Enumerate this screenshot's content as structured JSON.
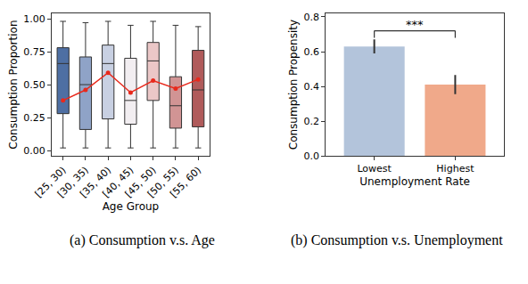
{
  "chart_data": [
    {
      "type": "box",
      "caption": "(a) Consumption v.s. Age",
      "x_label": "Age Group",
      "y_label": "Consumption Proportion",
      "categories": [
        "[25, 30)",
        "[30, 35)",
        "[35, 40)",
        "[40, 45)",
        "[45, 50)",
        "[50, 55)",
        "[55, 60)"
      ],
      "colors": [
        "#4e6fa3",
        "#8fa3c7",
        "#c8d0e2",
        "#f2eef1",
        "#ebc7c7",
        "#d19494",
        "#b05b5b"
      ],
      "lower_whisker": [
        0.02,
        0.02,
        0.02,
        0.02,
        0.02,
        0.02,
        0.02
      ],
      "q1": [
        0.28,
        0.16,
        0.24,
        0.2,
        0.38,
        0.17,
        0.18
      ],
      "median": [
        0.66,
        0.5,
        0.66,
        0.38,
        0.68,
        0.34,
        0.46
      ],
      "q3": [
        0.78,
        0.71,
        0.8,
        0.7,
        0.82,
        0.56,
        0.76
      ],
      "upper_whisker": [
        0.98,
        0.97,
        0.98,
        0.95,
        0.98,
        0.95,
        0.94
      ],
      "mean": {
        "values": [
          0.38,
          0.46,
          0.59,
          0.44,
          0.53,
          0.47,
          0.54
        ],
        "color": "#e8291c",
        "marker": "circle"
      },
      "ylim": [
        -0.04,
        1.04
      ],
      "yticks": [
        {
          "value": 0,
          "label": "0.00"
        },
        {
          "value": 0.25,
          "label": "0.25"
        },
        {
          "value": 0.5,
          "label": "0.50"
        },
        {
          "value": 0.75,
          "label": "0.75"
        },
        {
          "value": 1,
          "label": "1.00"
        }
      ],
      "grid": false
    },
    {
      "type": "bar",
      "caption": "(b) Consumption v.s. Unemployment",
      "x_label": "Unemployment Rate",
      "y_label": "Consumption Propensity",
      "categories": [
        "Lowest",
        "Highest"
      ],
      "values": [
        0.63,
        0.41
      ],
      "error": [
        0.04,
        0.055
      ],
      "colors": [
        "#b3c4db",
        "#f0a98a"
      ],
      "significance": {
        "label": "***",
        "y": 0.72
      },
      "ylim": [
        0,
        0.82
      ],
      "yticks": [
        {
          "value": 0,
          "label": "0.0"
        },
        {
          "value": 0.2,
          "label": "0.2"
        },
        {
          "value": 0.4,
          "label": "0.4"
        },
        {
          "value": 0.6,
          "label": "0.6"
        },
        {
          "value": 0.8,
          "label": "0.8"
        }
      ],
      "grid": false
    }
  ]
}
